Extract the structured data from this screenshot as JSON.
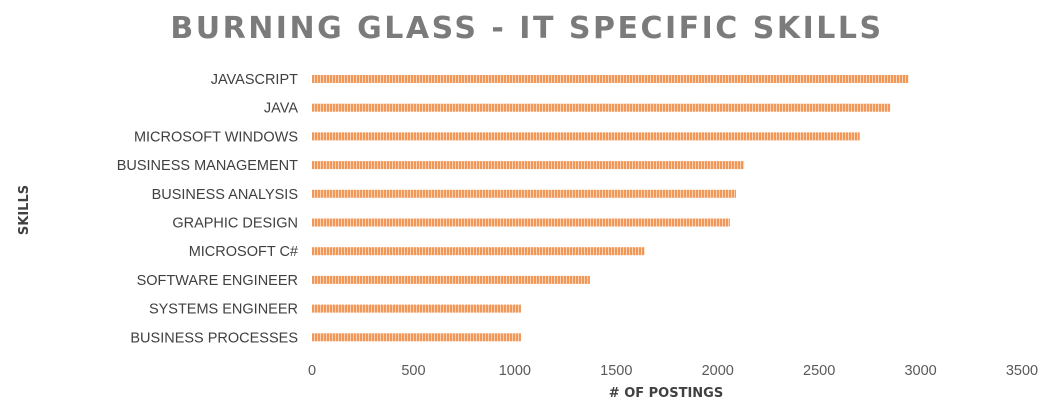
{
  "chart_data": {
    "type": "bar",
    "orientation": "horizontal",
    "title": "BURNING GLASS - IT SPECIFIC SKILLS",
    "xlabel": "# OF POSTINGS",
    "ylabel": "SKILLS",
    "categories": [
      "JAVASCRIPT",
      "JAVA",
      "MICROSOFT WINDOWS",
      "BUSINESS MANAGEMENT",
      "BUSINESS ANALYSIS",
      "GRAPHIC DESIGN",
      "MICROSOFT C#",
      "SOFTWARE ENGINEER",
      "SYSTEMS ENGINEER",
      "BUSINESS PROCESSES"
    ],
    "values": [
      2940,
      2850,
      2700,
      2130,
      2090,
      2060,
      1640,
      1370,
      1030,
      1030
    ],
    "xlim": [
      0,
      3500
    ],
    "xticks": [
      0,
      500,
      1000,
      1500,
      2000,
      2500,
      3000,
      3500
    ],
    "grid": false,
    "legend": "none",
    "bar_color": "#f0975a",
    "bar_stripe_color": "#fbd3b4"
  }
}
